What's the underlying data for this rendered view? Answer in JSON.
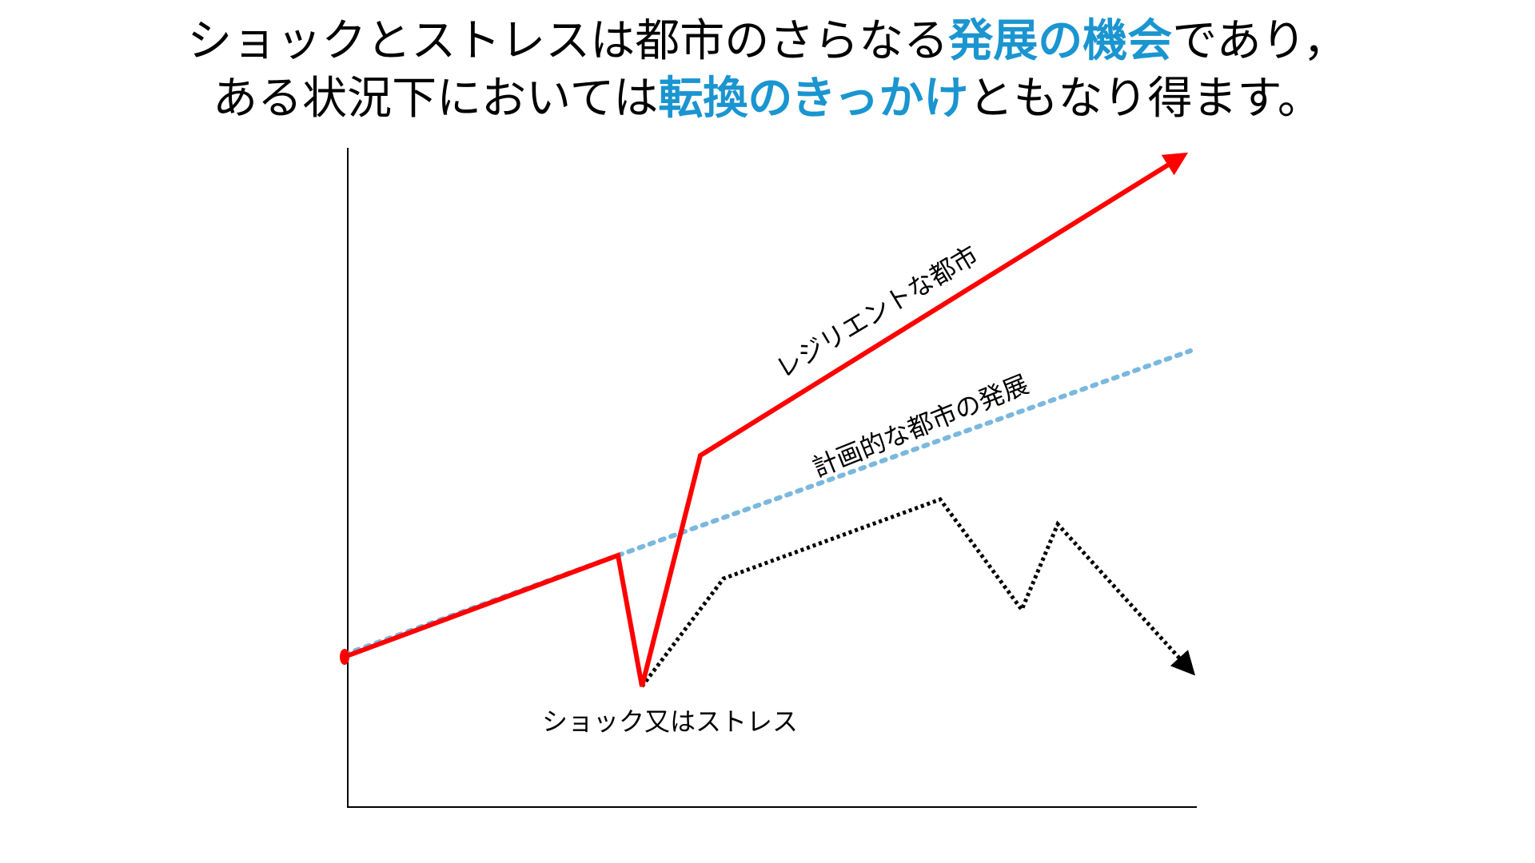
{
  "title": {
    "line1": [
      "ショックとストレスは都市のさらなる",
      "発展の機会",
      "であり，"
    ],
    "line2": [
      "ある状況下においては",
      "転換のきっかけ",
      "ともなり得ます。"
    ]
  },
  "labels": {
    "resilient": "レジリエントな都市",
    "planned": "計画的な都市の発展",
    "shock": "ショック又はストレス"
  }
}
